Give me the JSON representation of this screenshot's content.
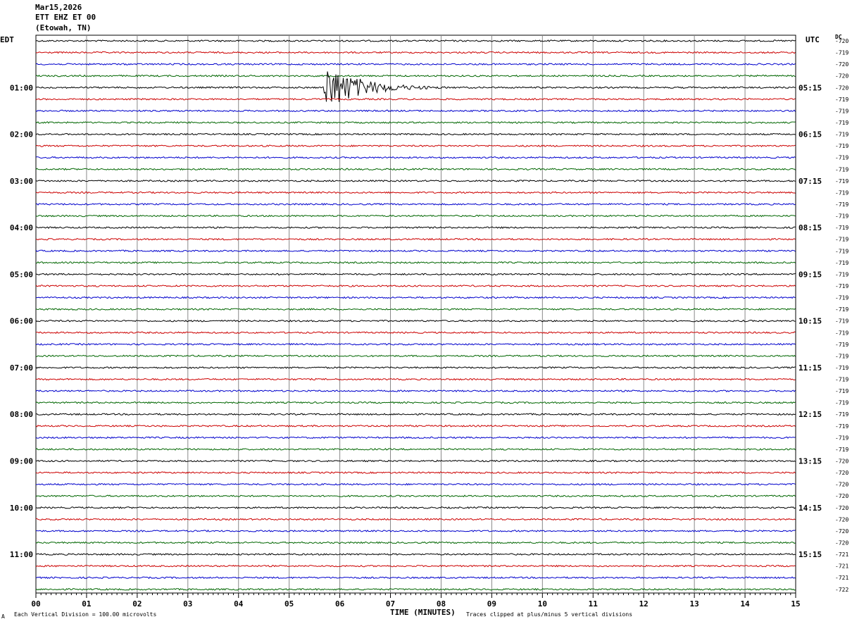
{
  "header": {
    "date": "Mar15,2026",
    "station": "ETT EHZ ET 00",
    "location": "(Etowah, TN)"
  },
  "left_axis_label": "EDT",
  "right_axis_label": "UTC",
  "dc_label": "DC",
  "xlabel": "TIME (MINUTES)",
  "footer": {
    "mark": "A",
    "scale_note": "Each Vertical Division =  100.00 microvolts",
    "clip_note": "Traces clipped at plus/minus 5 vertical divisions"
  },
  "colors": {
    "c0": "#000000",
    "c1": "#cc0000",
    "c2": "#0000cc",
    "c3": "#006600"
  },
  "chart_data": {
    "type": "line",
    "title": "",
    "xlim": [
      0,
      15
    ],
    "x_ticks": [
      "00",
      "01",
      "02",
      "03",
      "04",
      "05",
      "06",
      "07",
      "08",
      "09",
      "10",
      "11",
      "12",
      "13",
      "14",
      "15"
    ],
    "trace_count": 48,
    "trace_colors_cycle": [
      "black",
      "red",
      "blue",
      "green"
    ],
    "left_time_labels": [
      {
        "trace": 4,
        "label": "01:00"
      },
      {
        "trace": 8,
        "label": "02:00"
      },
      {
        "trace": 12,
        "label": "03:00"
      },
      {
        "trace": 16,
        "label": "04:00"
      },
      {
        "trace": 20,
        "label": "05:00"
      },
      {
        "trace": 24,
        "label": "06:00"
      },
      {
        "trace": 28,
        "label": "07:00"
      },
      {
        "trace": 32,
        "label": "08:00"
      },
      {
        "trace": 36,
        "label": "09:00"
      },
      {
        "trace": 40,
        "label": "10:00"
      },
      {
        "trace": 44,
        "label": "11:00"
      }
    ],
    "right_time_labels": [
      {
        "trace": 4,
        "label": "05:15"
      },
      {
        "trace": 8,
        "label": "06:15"
      },
      {
        "trace": 12,
        "label": "07:15"
      },
      {
        "trace": 16,
        "label": "08:15"
      },
      {
        "trace": 20,
        "label": "09:15"
      },
      {
        "trace": 24,
        "label": "10:15"
      },
      {
        "trace": 28,
        "label": "11:15"
      },
      {
        "trace": 32,
        "label": "12:15"
      },
      {
        "trace": 36,
        "label": "13:15"
      },
      {
        "trace": 40,
        "label": "14:15"
      },
      {
        "trace": 44,
        "label": "15:15"
      }
    ],
    "dc_offsets": [
      "-720",
      "-719",
      "-720",
      "-720",
      "-720",
      "-719",
      "-719",
      "-719",
      "-719",
      "-719",
      "-719",
      "-719",
      "-719",
      "-719",
      "-719",
      "-719",
      "-719",
      "-719",
      "-719",
      "-719",
      "-719",
      "-719",
      "-719",
      "-719",
      "-719",
      "-719",
      "-719",
      "-719",
      "-719",
      "-719",
      "-719",
      "-719",
      "-719",
      "-719",
      "-719",
      "-719",
      "-720",
      "-720",
      "-720",
      "-720",
      "-720",
      "-720",
      "-720",
      "-720",
      "-721",
      "-721",
      "-721",
      "-722"
    ],
    "events": [
      {
        "trace": 4,
        "start_minute": 5.68,
        "end_minute": 9.5,
        "peak_divisions": 5
      }
    ]
  }
}
